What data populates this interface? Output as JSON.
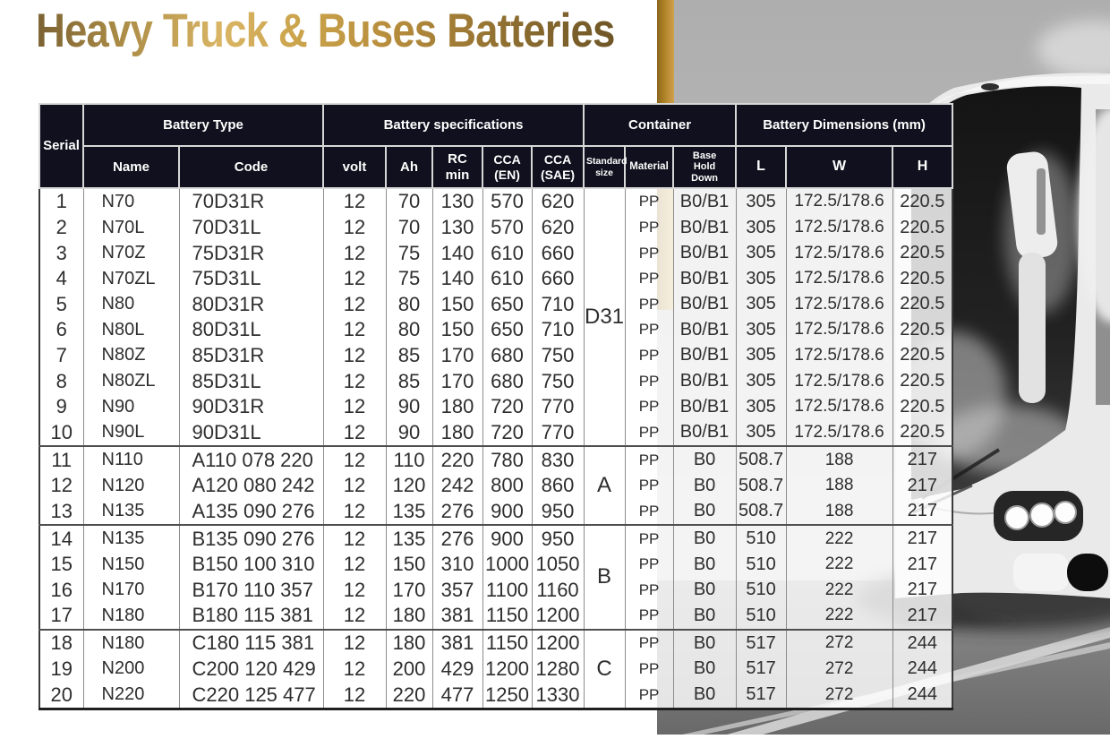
{
  "page": {
    "title": "Heavy Truck & Buses Batteries"
  },
  "colors": {
    "title_gold_dark": "#7b6133",
    "title_gold_light": "#d9b564",
    "stripe_gold": "#b9881e",
    "header_bg": "#10101e",
    "header_text": "#ffffff",
    "body_text": "#2e2e2e"
  },
  "background": {
    "photo_alt": "grayscale front view of a coach bus on a road with white lane stripes"
  },
  "table": {
    "header": {
      "serial": "Serial",
      "battery_type": "Battery Type",
      "battery_specs": "Battery specifications",
      "container": "Container",
      "dimensions": "Battery Dimensions (mm)"
    },
    "sub_headers": [
      "Name",
      "Code",
      "volt",
      "Ah",
      "RC min",
      "CCA (EN)",
      "CCA (SAE)",
      "Standard size",
      "Material",
      "Base Hold Down",
      "L",
      "W",
      "H"
    ],
    "groups": [
      {
        "standard_size": "D31",
        "rows": [
          {
            "serial": "1",
            "name": "N70",
            "code": "70D31R",
            "volt": "12",
            "ah": "70",
            "rc_min": "130",
            "cca_en": "570",
            "cca_sae": "620",
            "material": "PP",
            "base_hold_down": "B0/B1",
            "l": "305",
            "w": "172.5/178.6",
            "h": "220.5"
          },
          {
            "serial": "2",
            "name": "N70L",
            "code": "70D31L",
            "volt": "12",
            "ah": "70",
            "rc_min": "130",
            "cca_en": "570",
            "cca_sae": "620",
            "material": "PP",
            "base_hold_down": "B0/B1",
            "l": "305",
            "w": "172.5/178.6",
            "h": "220.5"
          },
          {
            "serial": "3",
            "name": "N70Z",
            "code": "75D31R",
            "volt": "12",
            "ah": "75",
            "rc_min": "140",
            "cca_en": "610",
            "cca_sae": "660",
            "material": "PP",
            "base_hold_down": "B0/B1",
            "l": "305",
            "w": "172.5/178.6",
            "h": "220.5"
          },
          {
            "serial": "4",
            "name": "N70ZL",
            "code": "75D31L",
            "volt": "12",
            "ah": "75",
            "rc_min": "140",
            "cca_en": "610",
            "cca_sae": "660",
            "material": "PP",
            "base_hold_down": "B0/B1",
            "l": "305",
            "w": "172.5/178.6",
            "h": "220.5"
          },
          {
            "serial": "5",
            "name": "N80",
            "code": "80D31R",
            "volt": "12",
            "ah": "80",
            "rc_min": "150",
            "cca_en": "650",
            "cca_sae": "710",
            "material": "PP",
            "base_hold_down": "B0/B1",
            "l": "305",
            "w": "172.5/178.6",
            "h": "220.5"
          },
          {
            "serial": "6",
            "name": "N80L",
            "code": "80D31L",
            "volt": "12",
            "ah": "80",
            "rc_min": "150",
            "cca_en": "650",
            "cca_sae": "710",
            "material": "PP",
            "base_hold_down": "B0/B1",
            "l": "305",
            "w": "172.5/178.6",
            "h": "220.5"
          },
          {
            "serial": "7",
            "name": "N80Z",
            "code": "85D31R",
            "volt": "12",
            "ah": "85",
            "rc_min": "170",
            "cca_en": "680",
            "cca_sae": "750",
            "material": "PP",
            "base_hold_down": "B0/B1",
            "l": "305",
            "w": "172.5/178.6",
            "h": "220.5"
          },
          {
            "serial": "8",
            "name": "N80ZL",
            "code": "85D31L",
            "volt": "12",
            "ah": "85",
            "rc_min": "170",
            "cca_en": "680",
            "cca_sae": "750",
            "material": "PP",
            "base_hold_down": "B0/B1",
            "l": "305",
            "w": "172.5/178.6",
            "h": "220.5"
          },
          {
            "serial": "9",
            "name": "N90",
            "code": "90D31R",
            "volt": "12",
            "ah": "90",
            "rc_min": "180",
            "cca_en": "720",
            "cca_sae": "770",
            "material": "PP",
            "base_hold_down": "B0/B1",
            "l": "305",
            "w": "172.5/178.6",
            "h": "220.5"
          },
          {
            "serial": "10",
            "name": "N90L",
            "code": "90D31L",
            "volt": "12",
            "ah": "90",
            "rc_min": "180",
            "cca_en": "720",
            "cca_sae": "770",
            "material": "PP",
            "base_hold_down": "B0/B1",
            "l": "305",
            "w": "172.5/178.6",
            "h": "220.5"
          }
        ]
      },
      {
        "standard_size": "A",
        "rows": [
          {
            "serial": "11",
            "name": "N110",
            "code": "A110 078 220",
            "volt": "12",
            "ah": "110",
            "rc_min": "220",
            "cca_en": "780",
            "cca_sae": "830",
            "material": "PP",
            "base_hold_down": "B0",
            "l": "508.7",
            "w": "188",
            "h": "217"
          },
          {
            "serial": "12",
            "name": "N120",
            "code": "A120 080 242",
            "volt": "12",
            "ah": "120",
            "rc_min": "242",
            "cca_en": "800",
            "cca_sae": "860",
            "material": "PP",
            "base_hold_down": "B0",
            "l": "508.7",
            "w": "188",
            "h": "217"
          },
          {
            "serial": "13",
            "name": "N135",
            "code": "A135 090 276",
            "volt": "12",
            "ah": "135",
            "rc_min": "276",
            "cca_en": "900",
            "cca_sae": "950",
            "material": "PP",
            "base_hold_down": "B0",
            "l": "508.7",
            "w": "188",
            "h": "217"
          }
        ]
      },
      {
        "standard_size": "B",
        "rows": [
          {
            "serial": "14",
            "name": "N135",
            "code": "B135 090 276",
            "volt": "12",
            "ah": "135",
            "rc_min": "276",
            "cca_en": "900",
            "cca_sae": "950",
            "material": "PP",
            "base_hold_down": "B0",
            "l": "510",
            "w": "222",
            "h": "217"
          },
          {
            "serial": "15",
            "name": "N150",
            "code": "B150 100 310",
            "volt": "12",
            "ah": "150",
            "rc_min": "310",
            "cca_en": "1000",
            "cca_sae": "1050",
            "material": "PP",
            "base_hold_down": "B0",
            "l": "510",
            "w": "222",
            "h": "217"
          },
          {
            "serial": "16",
            "name": "N170",
            "code": "B170 110 357",
            "volt": "12",
            "ah": "170",
            "rc_min": "357",
            "cca_en": "1100",
            "cca_sae": "1160",
            "material": "PP",
            "base_hold_down": "B0",
            "l": "510",
            "w": "222",
            "h": "217"
          },
          {
            "serial": "17",
            "name": "N180",
            "code": "B180 115 381",
            "volt": "12",
            "ah": "180",
            "rc_min": "381",
            "cca_en": "1150",
            "cca_sae": "1200",
            "material": "PP",
            "base_hold_down": "B0",
            "l": "510",
            "w": "222",
            "h": "217"
          }
        ]
      },
      {
        "standard_size": "C",
        "rows": [
          {
            "serial": "18",
            "name": "N180",
            "code": "C180 115 381",
            "volt": "12",
            "ah": "180",
            "rc_min": "381",
            "cca_en": "1150",
            "cca_sae": "1200",
            "material": "PP",
            "base_hold_down": "B0",
            "l": "517",
            "w": "272",
            "h": "244"
          },
          {
            "serial": "19",
            "name": "N200",
            "code": "C200 120 429",
            "volt": "12",
            "ah": "200",
            "rc_min": "429",
            "cca_en": "1200",
            "cca_sae": "1280",
            "material": "PP",
            "base_hold_down": "B0",
            "l": "517",
            "w": "272",
            "h": "244"
          },
          {
            "serial": "20",
            "name": "N220",
            "code": "C220 125 477",
            "volt": "12",
            "ah": "220",
            "rc_min": "477",
            "cca_en": "1250",
            "cca_sae": "1330",
            "material": "PP",
            "base_hold_down": "B0",
            "l": "517",
            "w": "272",
            "h": "244"
          }
        ]
      }
    ]
  }
}
